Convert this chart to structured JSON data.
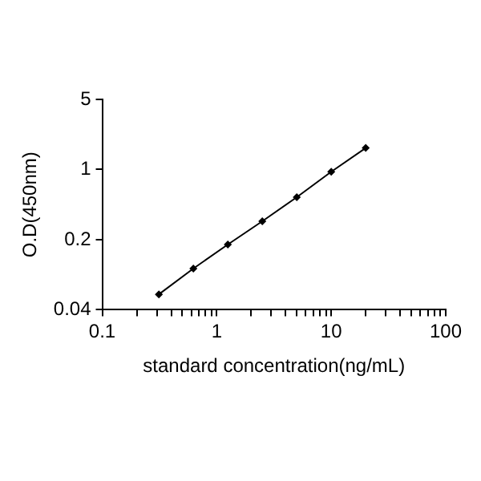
{
  "chart_data": {
    "type": "line",
    "xlabel": "standard concentration(ng/mL)",
    "ylabel": "O.D(450nm)",
    "log": "xy",
    "x": [
      0.3125,
      0.625,
      1.25,
      2.5,
      5,
      10,
      20
    ],
    "series": [
      {
        "color": "#000000",
        "values": [
          0.057,
          0.103,
          0.179,
          0.305,
          0.53,
          0.95,
          1.64
        ]
      }
    ],
    "xlim": [
      0.1,
      100
    ],
    "xticks": [
      0.1,
      {
        "value": 0.2,
        "label": null
      },
      {
        "value": 0.3,
        "label": null
      },
      {
        "value": 0.4,
        "label": null
      },
      {
        "value": 0.5,
        "label": null
      },
      {
        "value": 0.6,
        "label": null
      },
      {
        "value": 0.7,
        "label": null
      },
      {
        "value": 0.8,
        "label": null
      },
      {
        "value": 0.9,
        "label": null
      },
      1,
      {
        "value": 2,
        "label": null
      },
      {
        "value": 3,
        "label": null
      },
      {
        "value": 4,
        "label": null
      },
      {
        "value": 5,
        "label": null
      },
      {
        "value": 6,
        "label": null
      },
      {
        "value": 7,
        "label": null
      },
      {
        "value": 8,
        "label": null
      },
      {
        "value": 9,
        "label": null
      },
      10,
      {
        "value": 20,
        "label": null
      },
      {
        "value": 30,
        "label": null
      },
      {
        "value": 40,
        "label": null
      },
      {
        "value": 50,
        "label": null
      },
      {
        "value": 60,
        "label": null
      },
      {
        "value": 70,
        "label": null
      },
      {
        "value": 80,
        "label": null
      },
      {
        "value": 90,
        "label": null
      },
      100
    ],
    "ylim": [
      0.04,
      5
    ],
    "yticks": [
      0.04,
      0.2,
      1,
      5
    ],
    "grid": false,
    "legend": false,
    "marker": "diamond",
    "line_style": "solid"
  }
}
